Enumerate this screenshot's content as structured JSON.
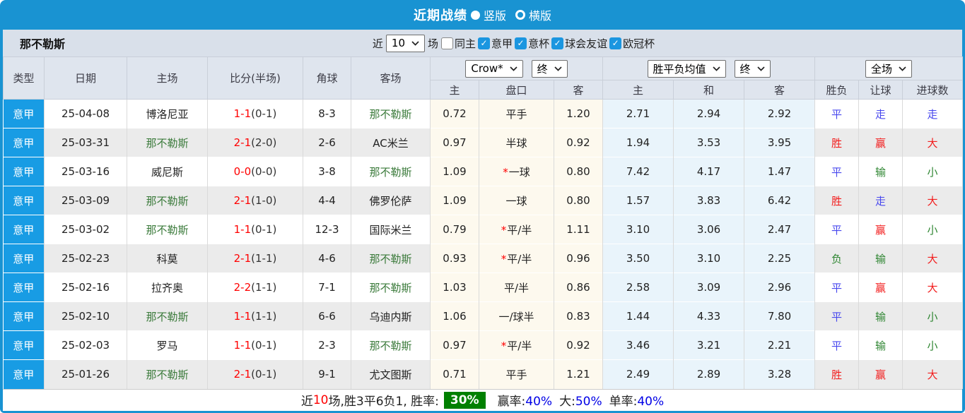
{
  "title_bar": {
    "title": "近期战绩",
    "radio_vertical": "竖版",
    "radio_horizontal": "横版"
  },
  "filter_bar": {
    "team": "那不勒斯",
    "recent_label": "近",
    "recent_value": "10",
    "games_label": "场",
    "checkboxes": [
      {
        "label": "同主",
        "checked": false
      },
      {
        "label": "意甲",
        "checked": true
      },
      {
        "label": "意杯",
        "checked": true
      },
      {
        "label": "球会友谊",
        "checked": true
      },
      {
        "label": "欧冠杯",
        "checked": true
      }
    ]
  },
  "table": {
    "static_headers": [
      "类型",
      "日期",
      "主场",
      "比分(半场)",
      "角球",
      "客场"
    ],
    "selects": {
      "bookmaker": "Crow*",
      "bookmaker_time": "终",
      "avg": "胜平负均值",
      "avg_time": "终",
      "scope": "全场"
    },
    "sub_headers": [
      "主",
      "盘口",
      "客",
      "主",
      "和",
      "客",
      "胜负",
      "让球",
      "进球数"
    ],
    "rows": [
      {
        "league": "意甲",
        "date": "25-04-08",
        "home": {
          "name": "博洛尼亚",
          "highlight": false
        },
        "score": "1-1",
        "half": "(0-1)",
        "corners": "8-3",
        "away": {
          "name": "那不勒斯",
          "highlight": true
        },
        "ah_home": "0.72",
        "ah_line": {
          "star": false,
          "text": "平手"
        },
        "ah_away": "1.20",
        "avg_home": "2.71",
        "avg_draw": "2.94",
        "avg_away": "2.92",
        "result": {
          "text": "平",
          "color": "blue"
        },
        "ah_result": {
          "text": "走",
          "color": "blue"
        },
        "ou_result": {
          "text": "走",
          "color": "blue"
        }
      },
      {
        "league": "意甲",
        "date": "25-03-31",
        "home": {
          "name": "那不勒斯",
          "highlight": true
        },
        "score": "2-1",
        "half": "(2-0)",
        "corners": "2-6",
        "away": {
          "name": "AC米兰",
          "highlight": false
        },
        "ah_home": "0.97",
        "ah_line": {
          "star": false,
          "text": "半球"
        },
        "ah_away": "0.92",
        "avg_home": "1.94",
        "avg_draw": "3.53",
        "avg_away": "3.95",
        "result": {
          "text": "胜",
          "color": "red"
        },
        "ah_result": {
          "text": "赢",
          "color": "red"
        },
        "ou_result": {
          "text": "大",
          "color": "red"
        }
      },
      {
        "league": "意甲",
        "date": "25-03-16",
        "home": {
          "name": "威尼斯",
          "highlight": false
        },
        "score": "0-0",
        "half": "(0-0)",
        "corners": "3-8",
        "away": {
          "name": "那不勒斯",
          "highlight": true
        },
        "ah_home": "1.09",
        "ah_line": {
          "star": true,
          "text": "一球"
        },
        "ah_away": "0.80",
        "avg_home": "7.42",
        "avg_draw": "4.17",
        "avg_away": "1.47",
        "result": {
          "text": "平",
          "color": "blue"
        },
        "ah_result": {
          "text": "输",
          "color": "green"
        },
        "ou_result": {
          "text": "小",
          "color": "green"
        }
      },
      {
        "league": "意甲",
        "date": "25-03-09",
        "home": {
          "name": "那不勒斯",
          "highlight": true
        },
        "score": "2-1",
        "half": "(1-0)",
        "corners": "4-4",
        "away": {
          "name": "佛罗伦萨",
          "highlight": false
        },
        "ah_home": "1.09",
        "ah_line": {
          "star": false,
          "text": "一球"
        },
        "ah_away": "0.80",
        "avg_home": "1.57",
        "avg_draw": "3.83",
        "avg_away": "6.42",
        "result": {
          "text": "胜",
          "color": "red"
        },
        "ah_result": {
          "text": "走",
          "color": "blue"
        },
        "ou_result": {
          "text": "大",
          "color": "red"
        }
      },
      {
        "league": "意甲",
        "date": "25-03-02",
        "home": {
          "name": "那不勒斯",
          "highlight": true
        },
        "score": "1-1",
        "half": "(0-1)",
        "corners": "12-3",
        "away": {
          "name": "国际米兰",
          "highlight": false
        },
        "ah_home": "0.79",
        "ah_line": {
          "star": true,
          "text": "平/半"
        },
        "ah_away": "1.11",
        "avg_home": "3.10",
        "avg_draw": "3.06",
        "avg_away": "2.47",
        "result": {
          "text": "平",
          "color": "blue"
        },
        "ah_result": {
          "text": "赢",
          "color": "red"
        },
        "ou_result": {
          "text": "小",
          "color": "green"
        }
      },
      {
        "league": "意甲",
        "date": "25-02-23",
        "home": {
          "name": "科莫",
          "highlight": false
        },
        "score": "2-1",
        "half": "(1-1)",
        "corners": "4-6",
        "away": {
          "name": "那不勒斯",
          "highlight": true
        },
        "ah_home": "0.93",
        "ah_line": {
          "star": true,
          "text": "平/半"
        },
        "ah_away": "0.96",
        "avg_home": "3.50",
        "avg_draw": "3.10",
        "avg_away": "2.25",
        "result": {
          "text": "负",
          "color": "green"
        },
        "ah_result": {
          "text": "输",
          "color": "green"
        },
        "ou_result": {
          "text": "大",
          "color": "red"
        }
      },
      {
        "league": "意甲",
        "date": "25-02-16",
        "home": {
          "name": "拉齐奥",
          "highlight": false
        },
        "score": "2-2",
        "half": "(1-1)",
        "corners": "7-1",
        "away": {
          "name": "那不勒斯",
          "highlight": true
        },
        "ah_home": "1.03",
        "ah_line": {
          "star": false,
          "text": "平/半"
        },
        "ah_away": "0.86",
        "avg_home": "2.58",
        "avg_draw": "3.09",
        "avg_away": "2.96",
        "result": {
          "text": "平",
          "color": "blue"
        },
        "ah_result": {
          "text": "赢",
          "color": "red"
        },
        "ou_result": {
          "text": "大",
          "color": "red"
        }
      },
      {
        "league": "意甲",
        "date": "25-02-10",
        "home": {
          "name": "那不勒斯",
          "highlight": true
        },
        "score": "1-1",
        "half": "(1-1)",
        "corners": "6-6",
        "away": {
          "name": "乌迪内斯",
          "highlight": false
        },
        "ah_home": "1.06",
        "ah_line": {
          "star": false,
          "text": "一/球半"
        },
        "ah_away": "0.83",
        "avg_home": "1.44",
        "avg_draw": "4.33",
        "avg_away": "7.80",
        "result": {
          "text": "平",
          "color": "blue"
        },
        "ah_result": {
          "text": "输",
          "color": "green"
        },
        "ou_result": {
          "text": "小",
          "color": "green"
        }
      },
      {
        "league": "意甲",
        "date": "25-02-03",
        "home": {
          "name": "罗马",
          "highlight": false
        },
        "score": "1-1",
        "half": "(0-1)",
        "corners": "2-3",
        "away": {
          "name": "那不勒斯",
          "highlight": true
        },
        "ah_home": "0.97",
        "ah_line": {
          "star": true,
          "text": "平/半"
        },
        "ah_away": "0.92",
        "avg_home": "3.46",
        "avg_draw": "3.21",
        "avg_away": "2.21",
        "result": {
          "text": "平",
          "color": "blue"
        },
        "ah_result": {
          "text": "输",
          "color": "green"
        },
        "ou_result": {
          "text": "小",
          "color": "green"
        }
      },
      {
        "league": "意甲",
        "date": "25-01-26",
        "home": {
          "name": "那不勒斯",
          "highlight": true
        },
        "score": "2-1",
        "half": "(0-1)",
        "corners": "9-1",
        "away": {
          "name": "尤文图斯",
          "highlight": false
        },
        "ah_home": "0.71",
        "ah_line": {
          "star": false,
          "text": "平手"
        },
        "ah_away": "1.21",
        "avg_home": "2.49",
        "avg_draw": "2.89",
        "avg_away": "3.28",
        "result": {
          "text": "胜",
          "color": "red"
        },
        "ah_result": {
          "text": "赢",
          "color": "red"
        },
        "ou_result": {
          "text": "大",
          "color": "red"
        }
      }
    ]
  },
  "summary": {
    "prefix": "近",
    "count": "10",
    "mid": "场,胜3平6负1, 胜率:",
    "win_rate": "30%",
    "sections": [
      {
        "label": "赢率:",
        "value": "40%"
      },
      {
        "label": "大:",
        "value": "50%"
      },
      {
        "label": "单率:",
        "value": "40%"
      }
    ]
  },
  "colors": {
    "accent": "#1993d2",
    "badge": "#189ce4",
    "filter_bg": "#d9e0ea",
    "header_bg": "#dfe5ee",
    "row_alt": "#ebebeb",
    "cream": "#fdf9ee",
    "lblue": "#e9f4fb",
    "c_red": "#f21d1d",
    "c_blue": "#4747ee",
    "c_green": "#2f8632",
    "team_green": "#3a7a3a",
    "score_red": "#ff0000",
    "rate_bg": "#008000",
    "pct_blue": "#0000e6",
    "check_blue": "#1b96e0"
  }
}
